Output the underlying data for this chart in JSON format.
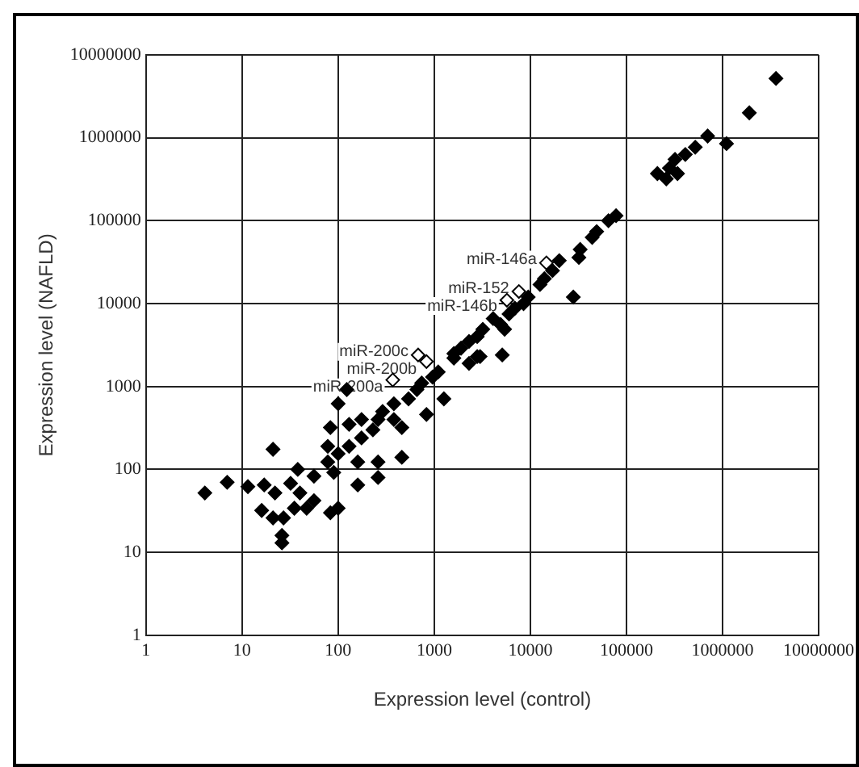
{
  "chart_data": {
    "type": "scatter",
    "xlabel": "Expression level (control)",
    "ylabel": "Expression level (NAFLD)",
    "log": "xy",
    "grid": true,
    "legend": false,
    "marker": "diamond",
    "xlim": [
      1,
      10000000
    ],
    "xticks": [
      1,
      10,
      100,
      1000,
      10000,
      100000,
      1000000,
      10000000
    ],
    "ylim": [
      1,
      10000000
    ],
    "yticks": [
      1,
      10,
      100,
      1000,
      10000,
      100000,
      1000000,
      10000000
    ],
    "series": [
      {
        "color": "#000000",
        "x": [
          3600000,
          1900000,
          1100000,
          700000,
          520000,
          410000,
          320000,
          280000,
          340000,
          210000,
          260000,
          78000,
          65000,
          49000,
          44000,
          33000,
          32000,
          28000,
          20000,
          17000,
          14000,
          12600,
          9500,
          8500,
          6900,
          6000,
          4900,
          4100,
          5400,
          3200,
          2800,
          5100,
          2300,
          1900,
          2800,
          1600,
          3000,
          2300,
          1600,
          1100,
          960,
          740,
          660,
          540,
          1260,
          830,
          380,
          290,
          260,
          460,
          230,
          175,
          130,
          100,
          78,
          90,
          175,
          123,
          100,
          83,
          460,
          260,
          260,
          160,
          160,
          56,
          38,
          32,
          56,
          40,
          21,
          17,
          11.5,
          7,
          4.1,
          22,
          16,
          21,
          27,
          35,
          47,
          26,
          26,
          83,
          100,
          78,
          130,
          380
        ],
        "values": [
          5200000,
          2000000,
          850000,
          1050000,
          770000,
          630000,
          550000,
          430000,
          370000,
          370000,
          320000,
          115000,
          100000,
          74000,
          63000,
          45000,
          36000,
          12000,
          33000,
          25000,
          20000,
          17000,
          12000,
          10000,
          8800,
          7500,
          5600,
          6600,
          4900,
          4900,
          4000,
          2400,
          3500,
          2900,
          2300,
          2500,
          2300,
          1900,
          2200,
          1500,
          1300,
          1100,
          920,
          710,
          710,
          460,
          620,
          500,
          400,
          320,
          300,
          240,
          190,
          155,
          123,
          92,
          400,
          920,
          620,
          320,
          140,
          123,
          80,
          65,
          123,
          83,
          100,
          68,
          42,
          52,
          175,
          65,
          62,
          70,
          52,
          52,
          32,
          26,
          26,
          34,
          34,
          16,
          13,
          30,
          34,
          190,
          350,
          400
        ]
      },
      {
        "color": "#ffffff",
        "x": [
          14700,
          7600,
          5700,
          680,
          830,
          370
        ],
        "values": [
          31000,
          14000,
          11000,
          2400,
          2000,
          1200
        ]
      }
    ],
    "annotations": [
      {
        "text": "miR-146a",
        "x": 14700,
        "y": 31000
      },
      {
        "text": "miR-152",
        "x": 7600,
        "y": 14000
      },
      {
        "text": "miR-146b",
        "x": 5700,
        "y": 11000
      },
      {
        "text": "miR-200c",
        "x": 680,
        "y": 2400
      },
      {
        "text": "miR-200b",
        "x": 830,
        "y": 2000
      },
      {
        "text": "miR-200a",
        "x": 370,
        "y": 1200
      }
    ]
  }
}
